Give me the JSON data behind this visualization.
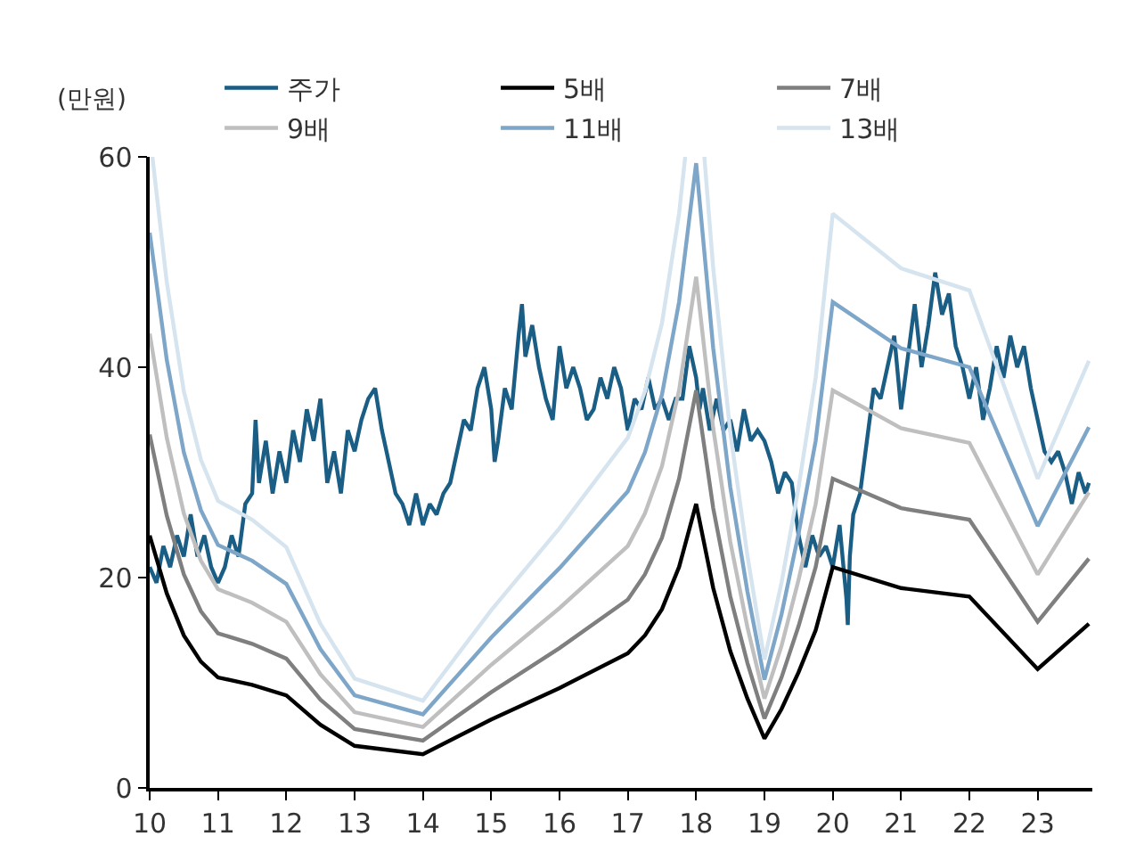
{
  "chart_data": {
    "type": "line",
    "ylabel": "(만원)",
    "x": [
      10,
      10.25,
      10.5,
      10.75,
      11,
      11.5,
      12,
      12.5,
      13,
      14,
      15,
      16,
      17,
      17.25,
      17.5,
      17.75,
      18,
      18.25,
      18.5,
      18.75,
      19,
      19.25,
      19.5,
      19.75,
      20,
      21,
      22,
      23,
      23.75
    ],
    "xlim": [
      10,
      23.8
    ],
    "xticks": [
      10,
      11,
      12,
      13,
      14,
      15,
      16,
      17,
      18,
      19,
      20,
      21,
      22,
      23
    ],
    "ylim": [
      0,
      60
    ],
    "yticks": [
      0,
      20,
      40,
      60
    ],
    "legend": "top",
    "marker": "none",
    "line_style": "solid",
    "series": [
      {
        "name": "주가",
        "color": "#1b5e85",
        "x": [
          10,
          10.1,
          10.2,
          10.3,
          10.4,
          10.5,
          10.6,
          10.7,
          10.8,
          10.9,
          11,
          11.1,
          11.2,
          11.3,
          11.4,
          11.5,
          11.55,
          11.6,
          11.7,
          11.8,
          11.9,
          12,
          12.1,
          12.2,
          12.3,
          12.4,
          12.5,
          12.6,
          12.7,
          12.8,
          12.9,
          13,
          13.1,
          13.2,
          13.3,
          13.4,
          13.5,
          13.6,
          13.7,
          13.8,
          13.9,
          14,
          14.1,
          14.2,
          14.3,
          14.4,
          14.5,
          14.6,
          14.7,
          14.8,
          14.9,
          15,
          15.05,
          15.1,
          15.2,
          15.3,
          15.4,
          15.45,
          15.5,
          15.6,
          15.7,
          15.8,
          15.9,
          16,
          16.1,
          16.2,
          16.3,
          16.4,
          16.5,
          16.6,
          16.7,
          16.8,
          16.9,
          17,
          17.1,
          17.2,
          17.3,
          17.4,
          17.5,
          17.6,
          17.7,
          17.8,
          17.9,
          18,
          18.05,
          18.1,
          18.2,
          18.3,
          18.4,
          18.5,
          18.6,
          18.7,
          18.8,
          18.9,
          19,
          19.1,
          19.2,
          19.3,
          19.4,
          19.5,
          19.6,
          19.7,
          19.8,
          19.9,
          20,
          20.1,
          20.2,
          20.22,
          20.25,
          20.3,
          20.4,
          20.5,
          20.6,
          20.7,
          20.8,
          20.9,
          21,
          21.1,
          21.2,
          21.3,
          21.4,
          21.5,
          21.6,
          21.7,
          21.8,
          21.9,
          22,
          22.1,
          22.2,
          22.3,
          22.4,
          22.5,
          22.6,
          22.7,
          22.8,
          22.9,
          23,
          23.1,
          23.2,
          23.3,
          23.4,
          23.5,
          23.6,
          23.7,
          23.75
        ],
        "values": [
          21,
          19.5,
          23,
          21,
          24,
          22,
          26,
          22,
          24,
          21,
          19.5,
          21,
          24,
          22,
          27,
          28,
          35,
          29,
          33,
          28,
          32,
          29,
          34,
          31,
          36,
          33,
          37,
          29,
          32,
          28,
          34,
          32,
          35,
          37,
          38,
          34,
          31,
          28,
          27,
          25,
          28,
          25,
          27,
          26,
          28,
          29,
          32,
          35,
          34,
          38,
          40,
          36,
          31,
          33,
          38,
          36,
          43,
          46,
          41,
          44,
          40,
          37,
          35,
          42,
          38,
          40,
          38,
          35,
          36,
          39,
          37,
          40,
          38,
          34,
          37,
          36,
          39,
          36,
          37,
          35,
          37,
          37,
          42,
          39,
          36,
          38,
          34,
          37,
          34,
          35,
          32,
          36,
          33,
          34,
          33,
          31,
          28,
          30,
          29,
          24,
          21,
          24,
          22,
          23,
          21,
          25,
          18,
          15.5,
          22,
          26,
          28,
          33,
          38,
          37,
          40,
          43,
          36,
          41,
          46,
          40,
          44,
          49,
          45,
          47,
          42,
          40,
          37,
          40,
          35,
          38,
          42,
          39,
          43,
          40,
          42,
          38,
          35,
          32,
          31,
          32,
          30,
          27,
          30,
          28,
          29
        ]
      },
      {
        "name": "5배",
        "color": "#000000",
        "values": [
          24,
          18.5,
          14.5,
          12,
          10.5,
          9.8,
          8.8,
          6,
          4,
          3.2,
          6.5,
          9.5,
          12.8,
          14.5,
          17,
          21,
          27,
          19,
          13,
          8.5,
          4.7,
          7.5,
          11,
          15,
          21,
          19,
          18.2,
          11.3,
          15.6
        ]
      },
      {
        "name": "7배",
        "color": "#7f7f7f",
        "values": [
          33.6,
          25.9,
          20.3,
          16.8,
          14.7,
          13.7,
          12.3,
          8.4,
          5.6,
          4.5,
          9.1,
          13.3,
          17.9,
          20.3,
          23.8,
          29.4,
          37.8,
          26.6,
          18.2,
          11.9,
          6.6,
          10.5,
          15.4,
          21,
          29.4,
          26.6,
          25.5,
          15.8,
          21.8
        ]
      },
      {
        "name": "9배",
        "color": "#bfbfbf",
        "values": [
          43.2,
          33.3,
          26.1,
          21.6,
          18.9,
          17.6,
          15.8,
          10.8,
          7.2,
          5.8,
          11.7,
          17.1,
          23.0,
          26.1,
          30.6,
          37.8,
          48.6,
          34.2,
          23.4,
          15.3,
          8.5,
          13.5,
          19.8,
          27,
          37.8,
          34.2,
          32.8,
          20.3,
          28.1
        ]
      },
      {
        "name": "11배",
        "color": "#7ea6c8",
        "values": [
          52.8,
          40.7,
          31.9,
          26.4,
          23.1,
          21.6,
          19.4,
          13.2,
          8.8,
          7.0,
          14.3,
          20.9,
          28.2,
          31.9,
          37.4,
          46.2,
          59.4,
          41.8,
          28.6,
          18.7,
          10.3,
          16.5,
          24.2,
          33,
          46.2,
          41.8,
          40.0,
          24.9,
          34.3
        ]
      },
      {
        "name": "13배",
        "color": "#d5e4ee",
        "x": [
          10.04,
          10.25,
          10.5,
          10.75,
          11,
          11.5,
          12,
          12.5,
          13,
          14,
          15,
          16,
          17,
          17.25,
          17.5,
          17.75,
          17.84,
          18,
          18.12,
          18.25,
          18.5,
          18.75,
          19,
          19.25,
          19.5,
          19.75,
          20,
          21,
          22,
          23,
          23.75
        ],
        "values": [
          60,
          48.1,
          37.7,
          31.2,
          27.3,
          25.5,
          22.9,
          15.6,
          10.4,
          8.3,
          16.9,
          24.7,
          33.3,
          37.7,
          44.2,
          54.6,
          60,
          null,
          60,
          49.4,
          33.8,
          22.1,
          12.2,
          19.5,
          28.6,
          39,
          54.6,
          49.4,
          47.3,
          29.4,
          40.6
        ]
      }
    ]
  }
}
